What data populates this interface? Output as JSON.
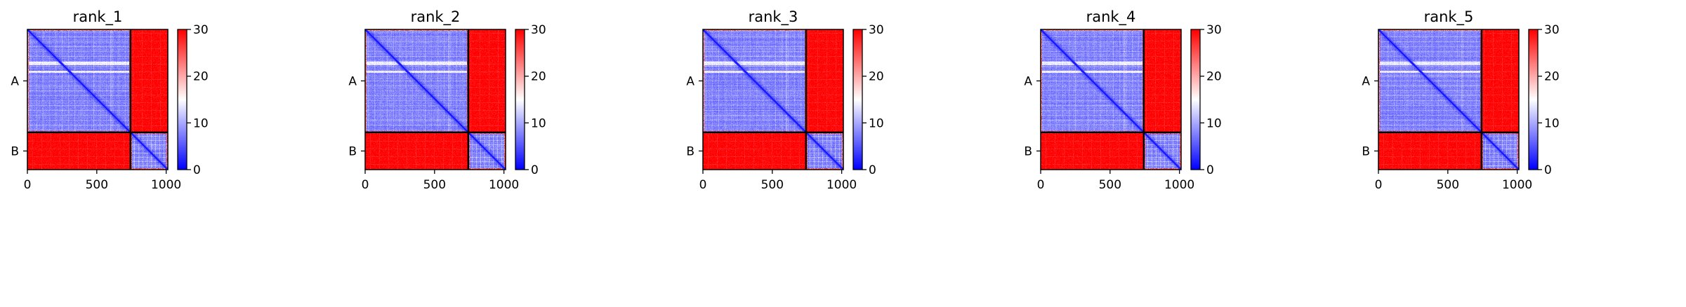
{
  "chart_data": [
    {
      "type": "heatmap",
      "title": "rank_1",
      "x_ticks": [
        0,
        500,
        1000
      ],
      "xlim": [
        0,
        1012
      ],
      "chains": [
        {
          "label": "A",
          "start": 0,
          "end": 743
        },
        {
          "label": "B",
          "start": 743,
          "end": 1012
        }
      ],
      "colorbar": {
        "min": 0,
        "max": 30,
        "ticks": [
          0,
          10,
          20,
          30
        ],
        "colors": [
          "#0000ff",
          "#ffffff",
          "#ff0000"
        ]
      },
      "grid": false
    },
    {
      "type": "heatmap",
      "title": "rank_2",
      "x_ticks": [
        0,
        500,
        1000
      ],
      "xlim": [
        0,
        1012
      ],
      "chains": [
        {
          "label": "A",
          "start": 0,
          "end": 743
        },
        {
          "label": "B",
          "start": 743,
          "end": 1012
        }
      ],
      "colorbar": {
        "min": 0,
        "max": 30,
        "ticks": [
          0,
          10,
          20,
          30
        ],
        "colors": [
          "#0000ff",
          "#ffffff",
          "#ff0000"
        ]
      },
      "grid": false
    },
    {
      "type": "heatmap",
      "title": "rank_3",
      "x_ticks": [
        0,
        500,
        1000
      ],
      "xlim": [
        0,
        1012
      ],
      "chains": [
        {
          "label": "A",
          "start": 0,
          "end": 743
        },
        {
          "label": "B",
          "start": 743,
          "end": 1012
        }
      ],
      "colorbar": {
        "min": 0,
        "max": 30,
        "ticks": [
          0,
          10,
          20,
          30
        ],
        "colors": [
          "#0000ff",
          "#ffffff",
          "#ff0000"
        ]
      },
      "grid": false
    },
    {
      "type": "heatmap",
      "title": "rank_4",
      "x_ticks": [
        0,
        500,
        1000
      ],
      "xlim": [
        0,
        1012
      ],
      "chains": [
        {
          "label": "A",
          "start": 0,
          "end": 743
        },
        {
          "label": "B",
          "start": 743,
          "end": 1012
        }
      ],
      "colorbar": {
        "min": 0,
        "max": 30,
        "ticks": [
          0,
          10,
          20,
          30
        ],
        "colors": [
          "#0000ff",
          "#ffffff",
          "#ff0000"
        ]
      },
      "grid": false
    },
    {
      "type": "heatmap",
      "title": "rank_5",
      "x_ticks": [
        0,
        500,
        1000
      ],
      "xlim": [
        0,
        1012
      ],
      "chains": [
        {
          "label": "A",
          "start": 0,
          "end": 743
        },
        {
          "label": "B",
          "start": 743,
          "end": 1012
        }
      ],
      "colorbar": {
        "min": 0,
        "max": 30,
        "ticks": [
          0,
          10,
          20,
          30
        ],
        "colors": [
          "#0000ff",
          "#ffffff",
          "#ff0000"
        ]
      },
      "grid": false
    }
  ]
}
